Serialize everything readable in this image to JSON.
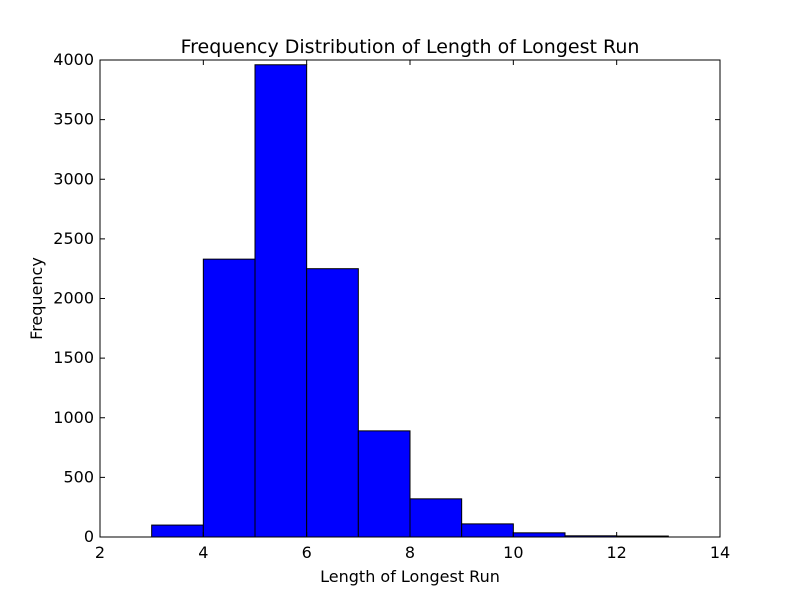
{
  "chart_data": {
    "type": "bar",
    "title": "Frequency Distribution of Length of Longest Run",
    "xlabel": "Length of Longest Run",
    "ylabel": "Frequency",
    "xlim": [
      2,
      14
    ],
    "ylim": [
      0,
      4000
    ],
    "xticks": [
      2,
      4,
      6,
      8,
      10,
      12,
      14
    ],
    "yticks": [
      0,
      500,
      1000,
      1500,
      2000,
      2500,
      3000,
      3500,
      4000
    ],
    "bins": [
      {
        "x0": 3,
        "x1": 4,
        "value": 100
      },
      {
        "x0": 4,
        "x1": 5,
        "value": 2330
      },
      {
        "x0": 5,
        "x1": 6,
        "value": 3960
      },
      {
        "x0": 6,
        "x1": 7,
        "value": 2250
      },
      {
        "x0": 7,
        "x1": 8,
        "value": 890
      },
      {
        "x0": 8,
        "x1": 9,
        "value": 320
      },
      {
        "x0": 9,
        "x1": 10,
        "value": 110
      },
      {
        "x0": 10,
        "x1": 11,
        "value": 35
      },
      {
        "x0": 11,
        "x1": 12,
        "value": 10
      },
      {
        "x0": 12,
        "x1": 13,
        "value": 8
      }
    ],
    "bar_color": "#0000ff",
    "grid": false,
    "legend": "none"
  }
}
